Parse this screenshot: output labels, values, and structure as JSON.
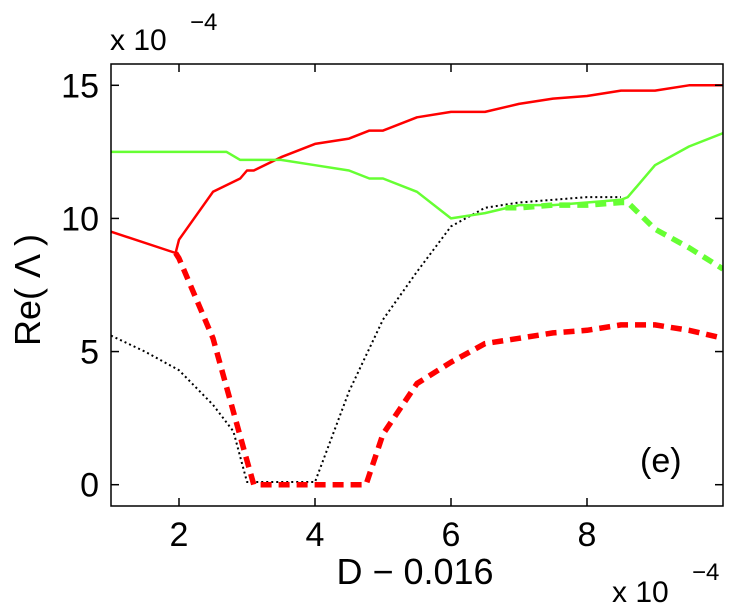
{
  "chart_data": {
    "type": "line",
    "title": "",
    "xlabel": "D − 0.016",
    "ylabel": "Re( Λ )",
    "x_multiplier_label": {
      "base": "x 10",
      "exponent": "−4"
    },
    "y_multiplier_label": {
      "base": "x 10",
      "exponent": "−4"
    },
    "xlim": [
      1,
      10
    ],
    "ylim": [
      -0.8,
      15.8
    ],
    "x_ticks": [
      2,
      4,
      6,
      8
    ],
    "y_ticks": [
      0,
      5,
      10,
      15
    ],
    "x_tick_labels": [
      "2",
      "4",
      "6",
      "8"
    ],
    "y_tick_labels": [
      "0",
      "5",
      "10",
      "15"
    ],
    "grid": false,
    "annotation": "(e)",
    "series": [
      {
        "color": "#ff0000",
        "style": "solid",
        "x": [
          1,
          1.95,
          2.0,
          2.5,
          2.9,
          3.0,
          3.1,
          3.5,
          4.0,
          4.5,
          4.8,
          5.0,
          5.5,
          6.0,
          6.5,
          7.0,
          7.5,
          8.0,
          8.5,
          9.0,
          9.5,
          10.0
        ],
        "y": [
          9.5,
          8.7,
          9.2,
          11.0,
          11.5,
          11.8,
          11.8,
          12.3,
          12.8,
          13.0,
          13.3,
          13.3,
          13.8,
          14.0,
          14.0,
          14.3,
          14.5,
          14.6,
          14.8,
          14.8,
          15.0,
          15.0
        ]
      },
      {
        "color": "#66ff33",
        "style": "solid",
        "x": [
          1,
          2.0,
          2.7,
          2.9,
          3.5,
          4.0,
          4.5,
          4.8,
          5.0,
          5.5,
          6.0,
          6.5,
          7.0,
          7.5,
          8.0,
          8.5,
          8.6,
          9.0,
          9.5,
          10.0
        ],
        "y": [
          12.5,
          12.5,
          12.5,
          12.2,
          12.2,
          12.0,
          11.8,
          11.5,
          11.5,
          11.0,
          10.0,
          10.2,
          10.5,
          10.5,
          10.6,
          10.7,
          10.8,
          12.0,
          12.7,
          13.2
        ]
      },
      {
        "color": "#ff0000",
        "style": "dashed",
        "x": [
          1.95,
          2.0,
          2.5,
          3.0,
          3.1,
          3.5,
          4.0,
          4.5,
          4.75,
          5.0,
          5.5,
          6.0,
          6.5,
          7.0,
          7.5,
          8.0,
          8.5,
          9.0,
          9.5,
          10.0
        ],
        "y": [
          8.7,
          8.5,
          5.5,
          0.9,
          0,
          0,
          0,
          0,
          0,
          1.9,
          3.8,
          4.6,
          5.3,
          5.5,
          5.7,
          5.8,
          6.0,
          6.0,
          5.8,
          5.5
        ]
      },
      {
        "color": "#66ff33",
        "style": "dashed",
        "x": [
          6.8,
          7.0,
          7.5,
          8.0,
          8.5,
          8.6,
          9.0,
          9.5,
          10.0
        ],
        "y": [
          10.4,
          10.4,
          10.5,
          10.5,
          10.6,
          10.6,
          9.6,
          8.9,
          8.1
        ]
      },
      {
        "color": "#000000",
        "style": "dotted",
        "x": [
          1,
          1.5,
          2.0,
          2.5,
          2.8,
          3.0,
          3.5,
          4.0,
          4.5,
          5.0,
          5.5,
          6.0,
          6.5,
          7.0,
          7.5,
          8.0,
          8.5
        ],
        "y": [
          5.6,
          5.0,
          4.3,
          3.0,
          2.0,
          0.1,
          0.1,
          0.1,
          3.5,
          6.2,
          8.0,
          9.7,
          10.4,
          10.6,
          10.7,
          10.8,
          10.8
        ]
      }
    ]
  }
}
